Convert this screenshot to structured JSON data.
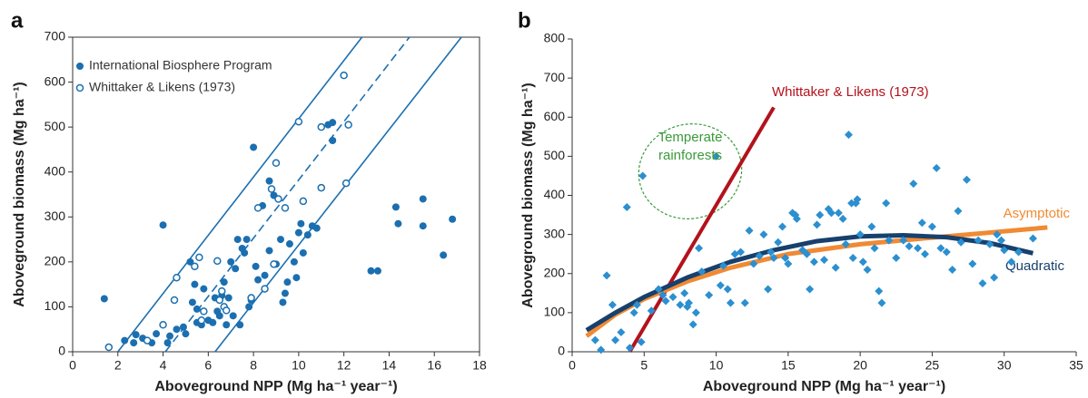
{
  "chart_data": [
    {
      "type": "scatter",
      "label": "a",
      "xlabel": "Aboveground NPP (Mg ha⁻¹ year⁻¹)",
      "ylabel": "Aboveground biomass (Mg ha⁻¹)",
      "xlim": [
        0,
        18
      ],
      "ylim": [
        0,
        700
      ],
      "xticks": [
        0,
        2,
        4,
        6,
        8,
        10,
        12,
        14,
        16,
        18
      ],
      "yticks": [
        0,
        100,
        200,
        300,
        400,
        500,
        600,
        700
      ],
      "grid": false,
      "legend": "upper left",
      "series": [
        {
          "name": "International Biosphere Program",
          "color": "#1b6fb0",
          "marker": "filled-circle",
          "x": [
            1.4,
            2.3,
            2.7,
            2.8,
            3.1,
            3.5,
            3.7,
            4.0,
            4.2,
            4.3,
            4.6,
            4.9,
            5.0,
            5.2,
            5.3,
            5.4,
            5.5,
            5.5,
            5.7,
            5.8,
            6.0,
            6.2,
            6.3,
            6.4,
            6.5,
            6.6,
            6.7,
            6.8,
            6.9,
            7.0,
            7.1,
            7.2,
            7.3,
            7.4,
            7.5,
            7.6,
            7.7,
            7.8,
            7.9,
            8.0,
            8.1,
            8.2,
            8.4,
            8.5,
            8.7,
            8.7,
            8.9,
            9.0,
            9.2,
            9.3,
            9.4,
            9.5,
            9.6,
            9.8,
            9.9,
            10.0,
            10.1,
            10.2,
            10.4,
            10.6,
            10.8,
            11.3,
            11.5,
            11.5,
            13.2,
            13.5,
            14.3,
            14.4,
            15.5,
            15.5,
            16.4,
            16.8
          ],
          "y": [
            118,
            25,
            20,
            38,
            30,
            20,
            40,
            282,
            20,
            35,
            50,
            55,
            40,
            200,
            110,
            150,
            95,
            65,
            60,
            140,
            70,
            65,
            120,
            90,
            80,
            125,
            155,
            60,
            120,
            200,
            80,
            185,
            250,
            60,
            230,
            220,
            250,
            100,
            115,
            455,
            190,
            160,
            325,
            170,
            225,
            380,
            348,
            195,
            250,
            110,
            130,
            155,
            240,
            200,
            165,
            265,
            285,
            220,
            260,
            280,
            275,
            505,
            510,
            470,
            180,
            180,
            322,
            285,
            340,
            280,
            215,
            295
          ]
        },
        {
          "name": "Whittaker & Likens (1973)",
          "color": "#1b6fb0",
          "marker": "open-circle",
          "x": [
            1.6,
            3.3,
            4.0,
            4.5,
            4.6,
            5.4,
            5.6,
            5.7,
            5.8,
            6.4,
            6.5,
            6.6,
            6.7,
            6.8,
            7.9,
            8.2,
            8.5,
            8.8,
            8.9,
            9.0,
            9.1,
            9.4,
            10.0,
            10.2,
            11.0,
            11.0,
            12.0,
            12.1,
            12.2
          ],
          "y": [
            10,
            25,
            60,
            115,
            165,
            190,
            210,
            70,
            90,
            202,
            115,
            135,
            100,
            92,
            120,
            320,
            140,
            362,
            195,
            420,
            340,
            320,
            512,
            335,
            500,
            365,
            615,
            375,
            505
          ]
        }
      ],
      "lines": [
        {
          "color": "#1b6fb0",
          "style": "solid",
          "x": [
            2.0,
            12.8
          ],
          "y": [
            0,
            700
          ]
        },
        {
          "color": "#1b6fb0",
          "style": "dashed",
          "x": [
            4.1,
            14.9
          ],
          "y": [
            0,
            700
          ]
        },
        {
          "color": "#1b6fb0",
          "style": "solid",
          "x": [
            6.3,
            17.2
          ],
          "y": [
            0,
            700
          ]
        }
      ]
    },
    {
      "type": "scatter",
      "label": "b",
      "xlabel": "Aboveground NPP (Mg ha⁻¹ year⁻¹)",
      "ylabel": "Aboveground biomass (Mg ha⁻¹)",
      "xlim": [
        0,
        35
      ],
      "ylim": [
        0,
        800
      ],
      "xticks": [
        0,
        5,
        10,
        15,
        20,
        25,
        30,
        35
      ],
      "yticks": [
        0,
        100,
        200,
        300,
        400,
        500,
        600,
        700,
        800
      ],
      "grid": false,
      "series": [
        {
          "color": "#2b8fd0",
          "marker": "diamond",
          "x": [
            1.6,
            2.0,
            2.4,
            2.8,
            3.0,
            3.4,
            3.8,
            4.0,
            4.3,
            4.5,
            4.8,
            4.9,
            5.5,
            6.0,
            6.3,
            6.5,
            7.0,
            7.5,
            7.8,
            8.0,
            8.1,
            8.4,
            8.6,
            8.8,
            9.0,
            9.5,
            10.0,
            10.3,
            10.5,
            10.8,
            11.0,
            11.3,
            11.7,
            12.0,
            12.3,
            12.6,
            13.0,
            13.3,
            13.6,
            13.8,
            14.0,
            14.3,
            14.6,
            14.8,
            15.0,
            15.3,
            15.5,
            15.6,
            16.0,
            16.3,
            16.5,
            16.8,
            17.0,
            17.2,
            17.5,
            17.8,
            18.0,
            18.3,
            18.5,
            18.8,
            19.0,
            19.2,
            19.4,
            19.5,
            19.7,
            19.8,
            20.0,
            20.2,
            20.5,
            20.8,
            21.0,
            21.3,
            21.5,
            21.8,
            22.0,
            22.5,
            23.0,
            23.4,
            23.7,
            24.0,
            24.3,
            24.5,
            25.0,
            25.3,
            25.6,
            26.0,
            26.4,
            26.8,
            27.0,
            27.4,
            27.8,
            28.2,
            28.5,
            29.0,
            29.3,
            29.5,
            29.8,
            30.0,
            30.5,
            31.0,
            32.0
          ],
          "y": [
            30,
            5,
            195,
            120,
            30,
            50,
            370,
            10,
            100,
            120,
            25,
            450,
            105,
            160,
            145,
            130,
            140,
            120,
            150,
            115,
            125,
            70,
            100,
            265,
            205,
            145,
            500,
            170,
            220,
            160,
            125,
            250,
            255,
            125,
            310,
            225,
            245,
            300,
            160,
            255,
            240,
            280,
            320,
            240,
            225,
            355,
            350,
            340,
            260,
            250,
            160,
            230,
            325,
            350,
            235,
            365,
            355,
            215,
            355,
            340,
            275,
            555,
            380,
            240,
            380,
            390,
            300,
            230,
            210,
            320,
            265,
            155,
            125,
            380,
            285,
            240,
            285,
            270,
            430,
            265,
            330,
            250,
            320,
            470,
            265,
            255,
            210,
            360,
            280,
            440,
            225,
            285,
            175,
            275,
            190,
            300,
            285,
            260,
            230,
            255,
            290
          ]
        }
      ],
      "lines": [
        {
          "name": "Whittaker & Likens (1973)",
          "color": "#b3121c",
          "style": "solid",
          "x": [
            4.0,
            14.0
          ],
          "y": [
            0,
            625
          ]
        },
        {
          "name": "Asymptotic",
          "color": "#f08a33",
          "style": "solid",
          "x": [
            1,
            3,
            5,
            8,
            11,
            15,
            20,
            25,
            30,
            33
          ],
          "y": [
            40,
            95,
            135,
            180,
            215,
            250,
            275,
            292,
            308,
            318
          ]
        },
        {
          "name": "Quadratic",
          "color": "#17406d",
          "style": "solid",
          "x": [
            1,
            3,
            5,
            8,
            11,
            14,
            17,
            20,
            23,
            26,
            29,
            32
          ],
          "y": [
            55,
            100,
            140,
            190,
            230,
            260,
            283,
            295,
            298,
            293,
            278,
            252
          ]
        }
      ],
      "annotations": [
        {
          "lines": [
            "Temperate",
            "rainforests"
          ],
          "color": "#3a9a3a"
        }
      ]
    }
  ]
}
